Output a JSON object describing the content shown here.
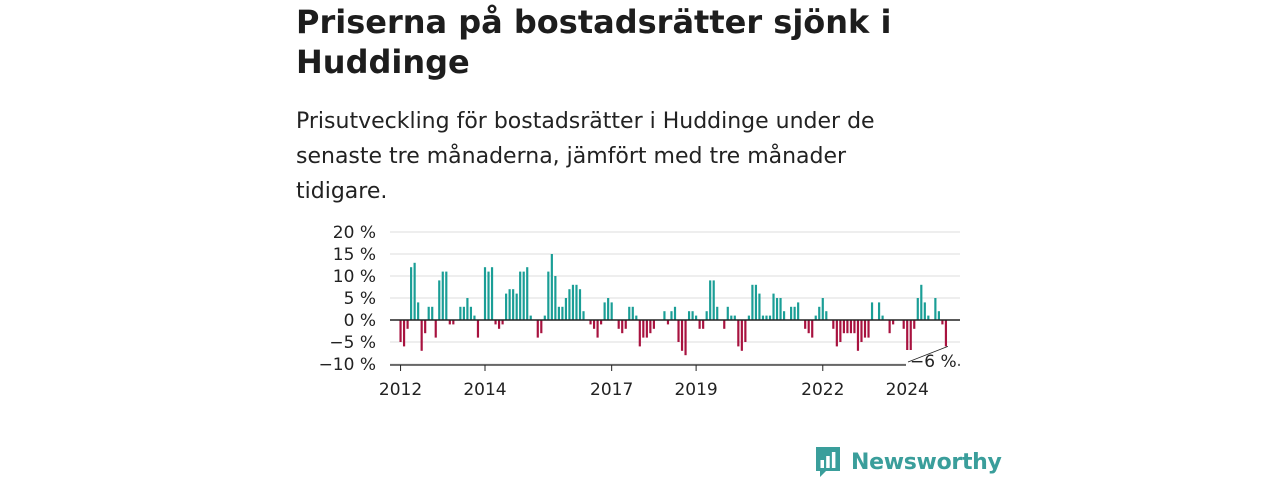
{
  "header": {
    "title": "Priserna på bostadsrätter sjönk i Huddinge",
    "subtitle": "Prisutveckling för bostadsrätter i Huddinge under de senaste tre månaderna, jämfört med tre månader tidigare."
  },
  "brand": {
    "name": "Newsworthy",
    "color": "#3a9e9b"
  },
  "chart_data": {
    "type": "bar",
    "title": "",
    "xlabel": "",
    "ylabel": "",
    "unit": "%",
    "ylim": [
      -10,
      20
    ],
    "yticks": [
      20,
      15,
      10,
      5,
      0,
      -5,
      -10
    ],
    "ytick_labels": [
      "20 %",
      "15 %",
      "10 %",
      "5 %",
      "0 %",
      "−5 %",
      "−10 %"
    ],
    "x_range": [
      2011.75,
      2025.25
    ],
    "xticks": [
      2012,
      2014,
      2017,
      2019,
      2022,
      2024
    ],
    "xtick_labels": [
      "2012",
      "2014",
      "2017",
      "2019",
      "2022",
      "2024"
    ],
    "grid": true,
    "positive_color": "#1a9e96",
    "negative_color": "#a8123f",
    "last_value_label": "−6 %",
    "start": {
      "year": 2012,
      "month": 1
    },
    "values": [
      -5,
      -6,
      -2,
      12,
      13,
      4,
      -7,
      -3,
      3,
      3,
      -4,
      9,
      11,
      11,
      -1,
      -1,
      0,
      3,
      3,
      5,
      3,
      1,
      -4,
      0,
      12,
      11,
      12,
      -1,
      -2,
      -1,
      6,
      7,
      7,
      6,
      11,
      11,
      12,
      1,
      0,
      -4,
      -3,
      1,
      11,
      15,
      10,
      3,
      3,
      5,
      7,
      8,
      8,
      7,
      2,
      0,
      -1,
      -2,
      -4,
      -1,
      4,
      5,
      4,
      0,
      -2,
      -3,
      -2,
      3,
      3,
      1,
      -6,
      -4,
      -4,
      -3,
      -2,
      0,
      0,
      2,
      -1,
      2,
      3,
      -5,
      -7,
      -8,
      2,
      2,
      1,
      -2,
      -2,
      2,
      9,
      9,
      3,
      0,
      -2,
      3,
      1,
      1,
      -6,
      -7,
      -5,
      1,
      8,
      8,
      6,
      1,
      1,
      1,
      6,
      5,
      5,
      2,
      0,
      3,
      3,
      4,
      0,
      -2,
      -3,
      -4,
      1,
      3,
      5,
      2,
      0,
      -2,
      -6,
      -5,
      -3,
      -3,
      -3,
      -3,
      -7,
      -5,
      -4,
      -4,
      4,
      0,
      4,
      1,
      0,
      -3,
      -1,
      0,
      0,
      -2,
      -7,
      -7,
      -2,
      5,
      8,
      4,
      1,
      0,
      5,
      2,
      -1,
      -6
    ]
  }
}
